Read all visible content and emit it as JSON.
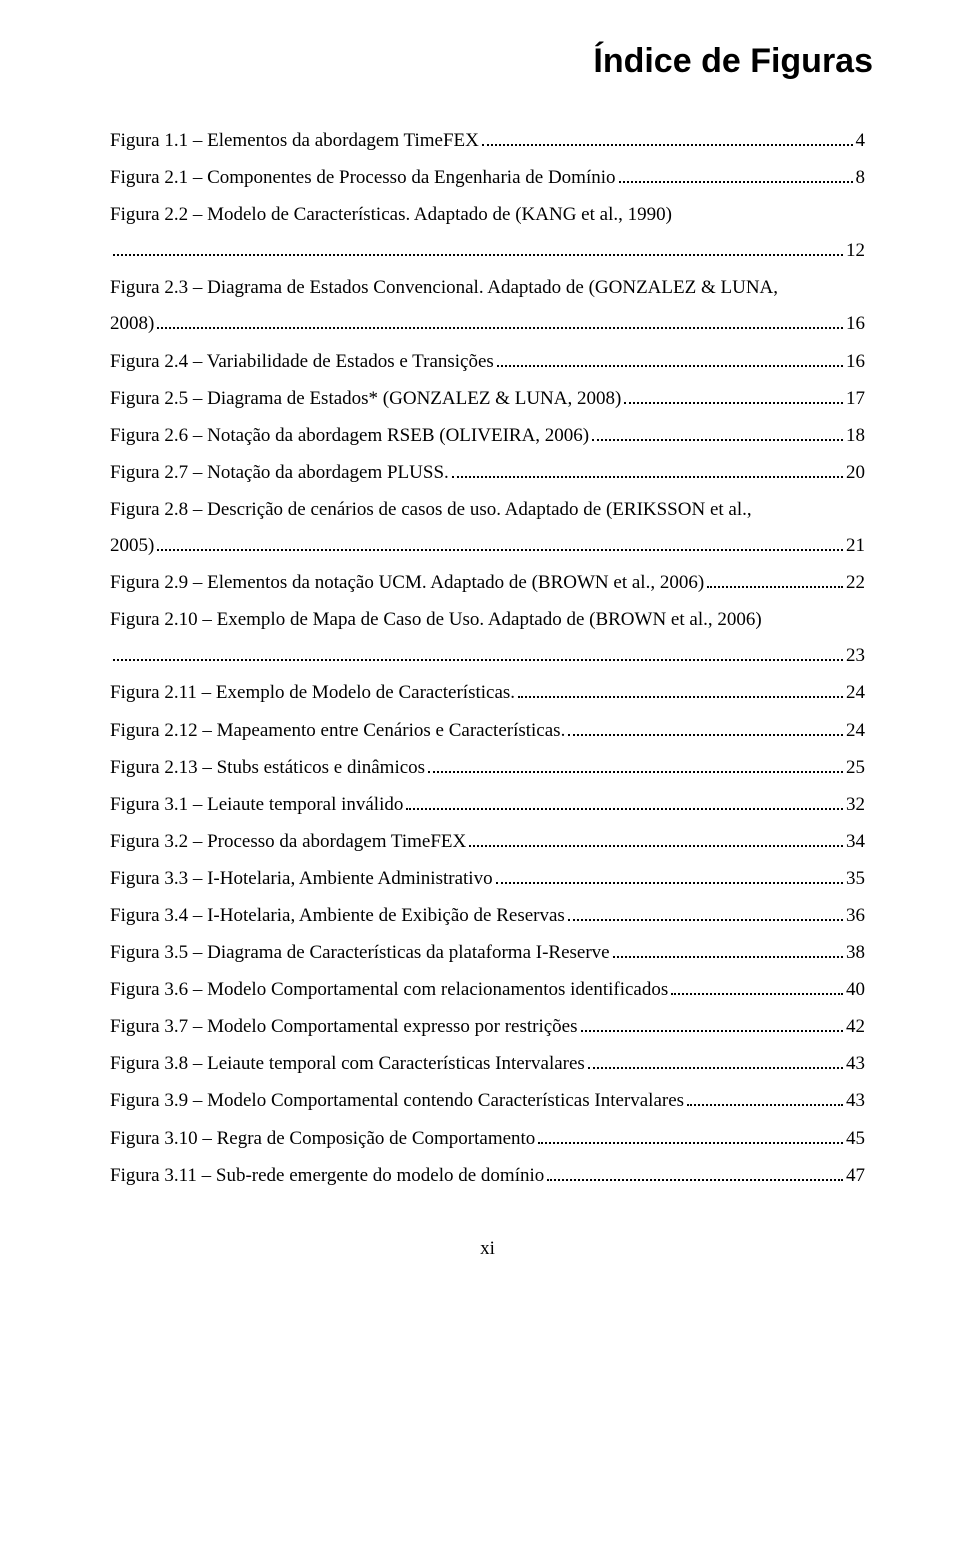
{
  "title": "Índice de Figuras",
  "footer": "xi",
  "entries": [
    {
      "label": "Figura 1.1 – Elementos da abordagem TimeFEX",
      "page": "4"
    },
    {
      "label": "Figura 2.1 – Componentes de Processo da Engenharia de Domínio",
      "page": "8"
    },
    {
      "label_line1": "Figura 2.2 – Modelo de Características. Adaptado de (KANG et al., 1990)",
      "label": "",
      "page": "12",
      "wrap": true
    },
    {
      "label_line1": "Figura 2.3 – Diagrama de Estados Convencional. Adaptado de (GONZALEZ & LUNA,",
      "label": "2008)",
      "page": "16",
      "wrap": true
    },
    {
      "label": "Figura 2.4 – Variabilidade de Estados e Transições",
      "page": "16"
    },
    {
      "label": "Figura 2.5 – Diagrama de Estados* (GONZALEZ & LUNA, 2008)",
      "page": "17"
    },
    {
      "label": "Figura 2.6 – Notação da abordagem RSEB (OLIVEIRA, 2006)",
      "page": "18"
    },
    {
      "label": "Figura 2.7 – Notação da abordagem PLUSS.",
      "page": "20"
    },
    {
      "label_line1": "Figura 2.8 – Descrição de cenários de casos de uso. Adaptado de (ERIKSSON et al.,",
      "label": "2005)",
      "page": "21",
      "wrap": true
    },
    {
      "label": "Figura 2.9 – Elementos da notação UCM. Adaptado de (BROWN et al., 2006)",
      "page": "22"
    },
    {
      "label_line1": "Figura 2.10 – Exemplo de Mapa de Caso de Uso. Adaptado de (BROWN et al., 2006)",
      "label": "",
      "page": "23",
      "wrap": true
    },
    {
      "label": "Figura 2.11 – Exemplo de Modelo de Características.",
      "page": "24"
    },
    {
      "label": "Figura 2.12 – Mapeamento entre Cenários e Características. ",
      "page": "24"
    },
    {
      "label": "Figura 2.13 – Stubs estáticos e dinâmicos",
      "page": "25"
    },
    {
      "label": "Figura 3.1 – Leiaute temporal inválido",
      "page": "32"
    },
    {
      "label": "Figura 3.2 – Processo da abordagem TimeFEX",
      "page": "34"
    },
    {
      "label": "Figura 3.3 – I-Hotelaria, Ambiente Administrativo",
      "page": "35"
    },
    {
      "label": "Figura 3.4 – I-Hotelaria, Ambiente de Exibição de Reservas",
      "page": "36"
    },
    {
      "label": "Figura 3.5 – Diagrama de Características da plataforma I-Reserve",
      "page": "38"
    },
    {
      "label": "Figura 3.6 – Modelo Comportamental com relacionamentos identificados",
      "page": "40"
    },
    {
      "label": "Figura 3.7 – Modelo Comportamental expresso por restrições",
      "page": "42"
    },
    {
      "label": "Figura 3.8 – Leiaute temporal com Características Intervalares",
      "page": "43"
    },
    {
      "label": "Figura 3.9 – Modelo Comportamental contendo Características Intervalares",
      "page": "43"
    },
    {
      "label": "Figura 3.10 – Regra de Composição de Comportamento",
      "page": "45"
    },
    {
      "label": "Figura 3.11 – Sub-rede emergente do modelo de domínio",
      "page": "47"
    }
  ]
}
